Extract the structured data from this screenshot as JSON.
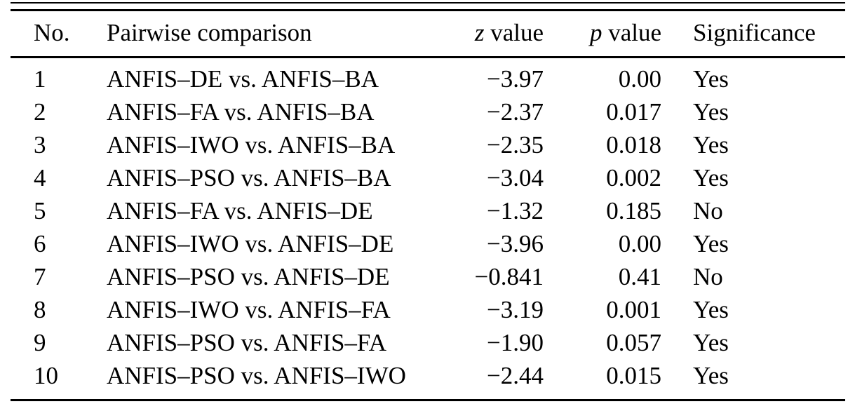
{
  "table": {
    "columns": [
      {
        "label": "No."
      },
      {
        "label": "Pairwise comparison"
      },
      {
        "symbol": "z",
        "suffix": " value"
      },
      {
        "symbol": "p",
        "suffix": " value"
      },
      {
        "label": "Significance"
      }
    ],
    "rows": [
      {
        "no": "1",
        "comparison": "ANFIS–DE vs. ANFIS–BA",
        "z": "−3.97",
        "p": "0.00",
        "significance": "Yes"
      },
      {
        "no": "2",
        "comparison": "ANFIS–FA vs. ANFIS–BA",
        "z": "−2.37",
        "p": "0.017",
        "significance": "Yes"
      },
      {
        "no": "3",
        "comparison": "ANFIS–IWO vs. ANFIS–BA",
        "z": "−2.35",
        "p": "0.018",
        "significance": "Yes"
      },
      {
        "no": "4",
        "comparison": "ANFIS–PSO vs. ANFIS–BA",
        "z": "−3.04",
        "p": "0.002",
        "significance": "Yes"
      },
      {
        "no": "5",
        "comparison": "ANFIS–FA vs. ANFIS–DE",
        "z": "−1.32",
        "p": "0.185",
        "significance": "No"
      },
      {
        "no": "6",
        "comparison": "ANFIS–IWO vs. ANFIS–DE",
        "z": "−3.96",
        "p": "0.00",
        "significance": "Yes"
      },
      {
        "no": "7",
        "comparison": "ANFIS–PSO vs. ANFIS–DE",
        "z": "−0.841",
        "p": "0.41",
        "significance": "No"
      },
      {
        "no": "8",
        "comparison": "ANFIS–IWO vs. ANFIS–FA",
        "z": "−3.19",
        "p": "0.001",
        "significance": "Yes"
      },
      {
        "no": "9",
        "comparison": "ANFIS–PSO vs. ANFIS–FA",
        "z": "−1.90",
        "p": "0.057",
        "significance": "Yes"
      },
      {
        "no": "10",
        "comparison": "ANFIS–PSO vs. ANFIS–IWO",
        "z": "−2.44",
        "p": "0.015",
        "significance": "Yes"
      }
    ]
  },
  "colors": {
    "background": "#ffffff",
    "text": "#000000",
    "rule": "#000000"
  }
}
